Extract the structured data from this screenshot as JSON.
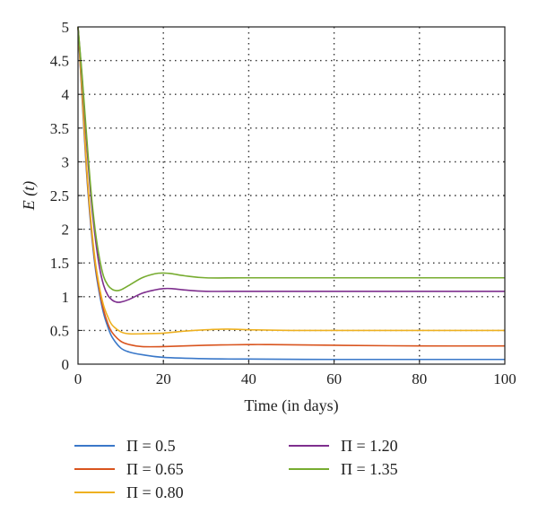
{
  "chart_data": {
    "type": "line",
    "xlabel": "Time (in days)",
    "ylabel": "E (t)",
    "xlim": [
      0,
      100
    ],
    "ylim": [
      0,
      5
    ],
    "xticks": [
      0,
      20,
      40,
      60,
      80,
      100
    ],
    "yticks": [
      0,
      0.5,
      1,
      1.5,
      2,
      2.5,
      3,
      3.5,
      4,
      4.5,
      5
    ],
    "ytick_labels": [
      "0",
      "0.5",
      "1",
      "1.5",
      "2",
      "2.5",
      "3",
      "3.5",
      "4",
      "4.5",
      "5"
    ],
    "grid": true,
    "legend_position": "bottom",
    "series": [
      {
        "name": "Π = 0.5",
        "color": "#3a78c9",
        "x": [
          0,
          1,
          2,
          3,
          4,
          5,
          6,
          7,
          8,
          10,
          12,
          15,
          20,
          30,
          40,
          60,
          80,
          100
        ],
        "y": [
          5,
          3.9,
          2.85,
          2.05,
          1.45,
          1.05,
          0.75,
          0.55,
          0.4,
          0.24,
          0.18,
          0.14,
          0.1,
          0.08,
          0.075,
          0.07,
          0.07,
          0.07
        ]
      },
      {
        "name": "Π = 0.65",
        "color": "#d9541e",
        "x": [
          0,
          1,
          2,
          3,
          4,
          5,
          6,
          7,
          8,
          10,
          12,
          15,
          20,
          30,
          40,
          45,
          60,
          80,
          100
        ],
        "y": [
          5,
          3.95,
          2.9,
          2.1,
          1.5,
          1.1,
          0.8,
          0.6,
          0.47,
          0.34,
          0.29,
          0.26,
          0.26,
          0.28,
          0.29,
          0.29,
          0.28,
          0.27,
          0.27
        ]
      },
      {
        "name": "Π = 0.80",
        "color": "#eeb121",
        "x": [
          0,
          1,
          2,
          3,
          4,
          5,
          6,
          7,
          8,
          10,
          12,
          15,
          20,
          25,
          30,
          35,
          40,
          50,
          60,
          80,
          100
        ],
        "y": [
          5,
          4.0,
          2.95,
          2.15,
          1.55,
          1.15,
          0.87,
          0.7,
          0.58,
          0.48,
          0.45,
          0.45,
          0.46,
          0.49,
          0.51,
          0.52,
          0.51,
          0.5,
          0.5,
          0.5,
          0.5
        ]
      },
      {
        "name": "Π = 1.20",
        "color": "#7e2f8e",
        "x": [
          0,
          1,
          2,
          3,
          4,
          5,
          6,
          7,
          8,
          9,
          10,
          12,
          15,
          18,
          20,
          22,
          25,
          30,
          40,
          60,
          80,
          100
        ],
        "y": [
          5,
          4.2,
          3.3,
          2.5,
          1.9,
          1.45,
          1.17,
          1.02,
          0.95,
          0.92,
          0.92,
          0.96,
          1.05,
          1.1,
          1.12,
          1.12,
          1.1,
          1.08,
          1.08,
          1.08,
          1.08,
          1.08
        ]
      },
      {
        "name": "Π = 1.35",
        "color": "#77ac30",
        "x": [
          0,
          1,
          2,
          3,
          4,
          5,
          6,
          7,
          8,
          9,
          10,
          12,
          15,
          18,
          20,
          22,
          25,
          30,
          40,
          60,
          80,
          100
        ],
        "y": [
          5,
          4.25,
          3.4,
          2.6,
          2.0,
          1.58,
          1.3,
          1.17,
          1.11,
          1.09,
          1.1,
          1.17,
          1.28,
          1.34,
          1.35,
          1.34,
          1.31,
          1.28,
          1.28,
          1.28,
          1.28,
          1.28
        ]
      }
    ]
  }
}
